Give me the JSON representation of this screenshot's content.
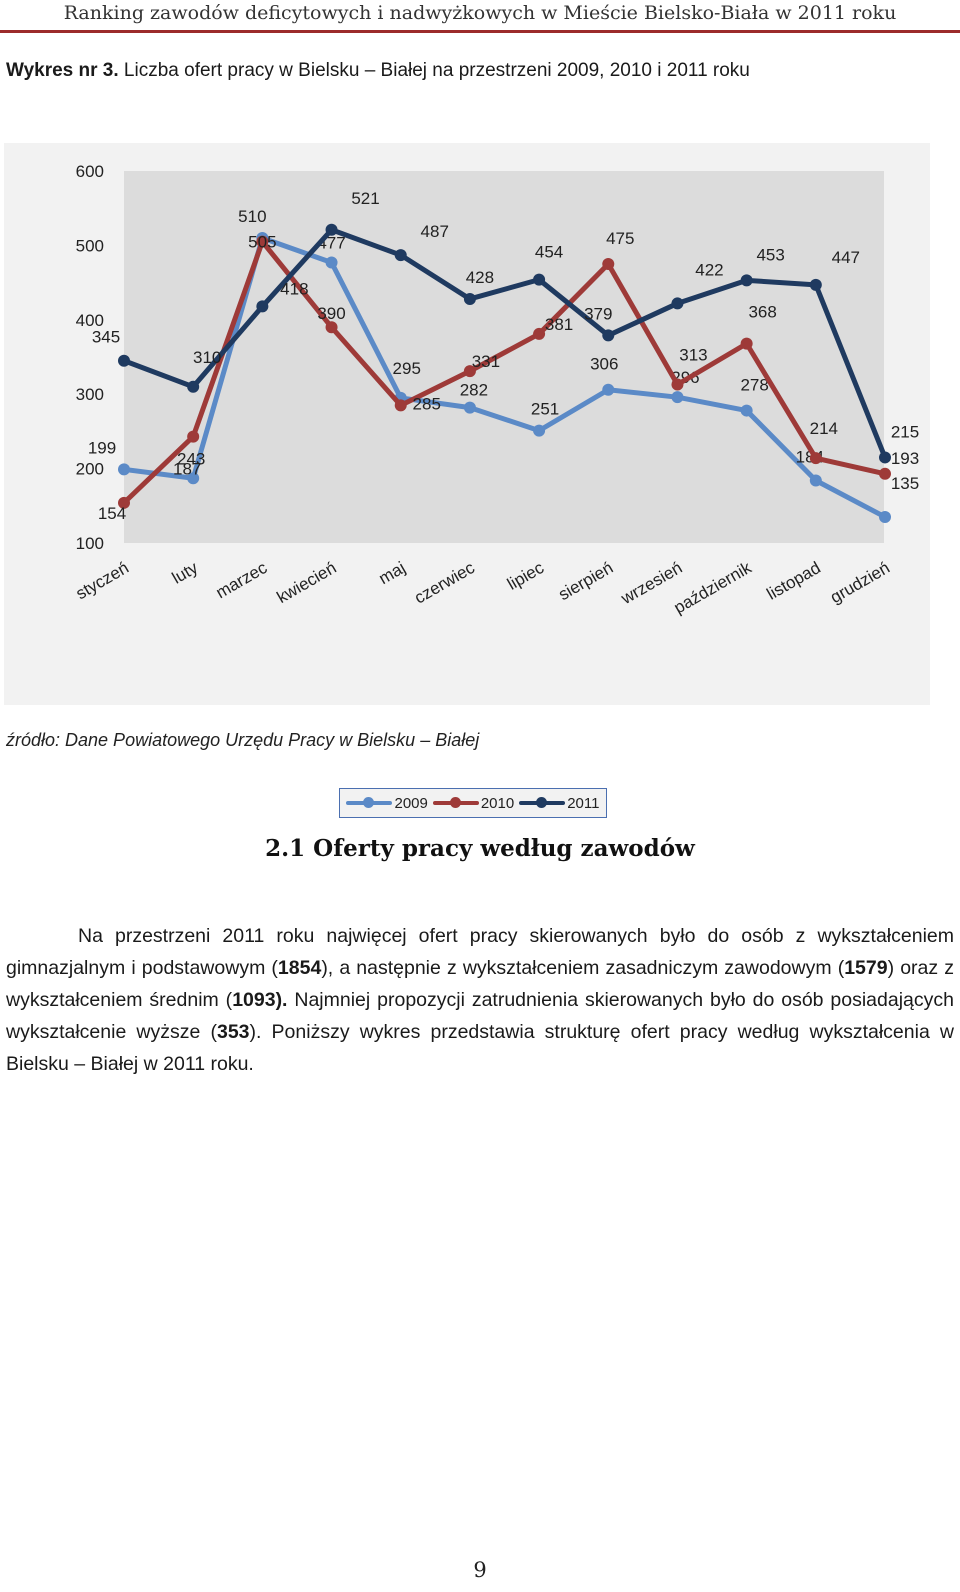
{
  "header": {
    "running_title": "Ranking zawodów deficytowych i nadwyżkowych w Mieście Bielsko-Biała w 2011 roku"
  },
  "figure": {
    "caption_label": "Wykres nr 3.",
    "caption_text": " Liczba ofert pracy w Bielsku – Białej na przestrzeni 2009, 2010 i 2011 roku",
    "source": "źródło: Dane Powiatowego Urzędu Pracy w Bielsku – Białej"
  },
  "chart_data": {
    "type": "line",
    "title": "",
    "xlabel": "",
    "ylabel": "",
    "ylim": [
      100,
      600
    ],
    "yticks": [
      100,
      200,
      300,
      400,
      500,
      600
    ],
    "grid": false,
    "legend_position": "bottom",
    "categories": [
      "styczeń",
      "luty",
      "marzec",
      "kwiecień",
      "maj",
      "czerwiec",
      "lipiec",
      "sierpień",
      "wrzesień",
      "październik",
      "listopad",
      "grudzień"
    ],
    "series": [
      {
        "name": "2009",
        "color": "#5b8ac7",
        "values": [
          199,
          187,
          510,
          477,
          295,
          282,
          251,
          306,
          296,
          278,
          184,
          135
        ]
      },
      {
        "name": "2010",
        "color": "#9e3a38",
        "values": [
          154,
          243,
          505,
          390,
          285,
          331,
          381,
          475,
          313,
          368,
          214,
          193
        ]
      },
      {
        "name": "2011",
        "color": "#1f3a60",
        "values": [
          345,
          310,
          418,
          521,
          487,
          428,
          454,
          379,
          422,
          453,
          447,
          215
        ]
      }
    ]
  },
  "section": {
    "title": "2.1  Oferty pracy według zawodów"
  },
  "paragraph": {
    "t1": "Na przestrzeni 2011 roku najwięcej ofert pracy skierowanych było do osób z wykształceniem gimnazjalnym i podstawowym (",
    "b1": "1854",
    "t2": "), a następnie z wykształceniem zasadniczym zawodowym (",
    "b2": "1579",
    "t3": ") oraz z wykształceniem średnim (",
    "b3": "1093).",
    "t4": " Najmniej propozycji zatrudnienia skierowanych było do osób posiadających wykształcenie wyższe (",
    "b4": "353",
    "t5": "). Poniższy wykres przedstawia strukturę ofert pracy według wykształcenia w Bielsku – Białej w 2011 roku."
  },
  "footer": {
    "page_number": "9"
  }
}
